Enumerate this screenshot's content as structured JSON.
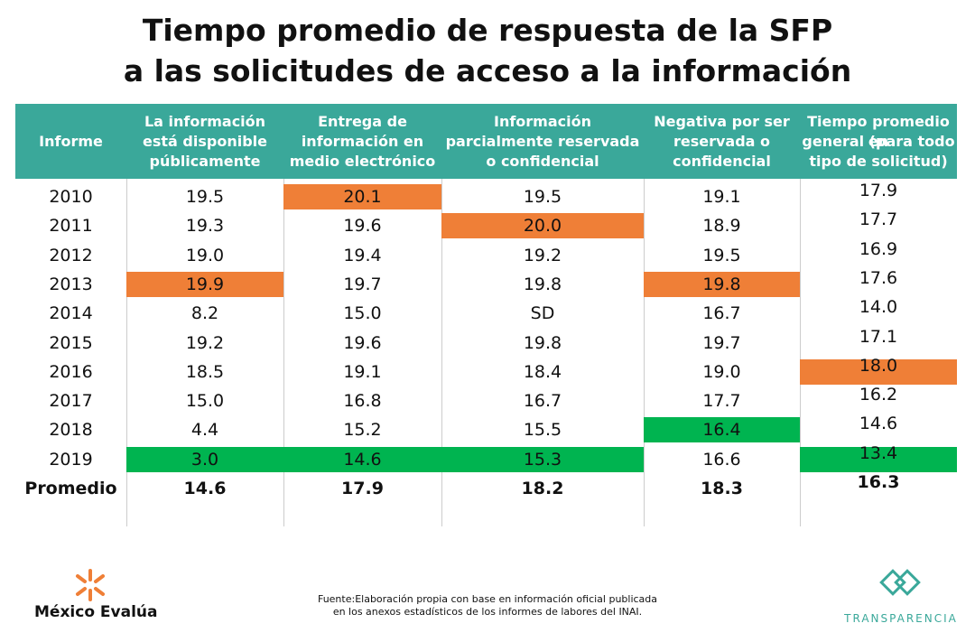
{
  "header": {
    "title": [
      "Tiempo promedio de respuesta de la SFP",
      "a las solicitudes de acceso a la información"
    ]
  },
  "table": {
    "columns": [
      [
        "Informe"
      ],
      [
        "La información",
        "está disponible",
        "públicamente"
      ],
      [
        "Entrega de",
        "información en",
        "medio electrónico"
      ],
      [
        "Información",
        "parcialmente reservada",
        "o confidencial"
      ],
      [
        "Negativa por ser",
        "reservada o",
        "confidencial"
      ],
      [
        "Tiempo promedio en",
        "general (para todo",
        "tipo de solicitud)"
      ]
    ],
    "rows": [
      [
        "2010",
        "19.5",
        "20.1",
        "19.5",
        "19.1",
        "17.9"
      ],
      [
        "2011",
        "19.3",
        "19.6",
        "20.0",
        "18.9",
        "17.7"
      ],
      [
        "2012",
        "19.0",
        "19.4",
        "19.2",
        "19.5",
        "16.9"
      ],
      [
        "2013",
        "19.9",
        "19.7",
        "19.8",
        "19.8",
        "17.6"
      ],
      [
        "2014",
        "8.2",
        "15.0",
        "SD",
        "16.7",
        "14.0"
      ],
      [
        "2015",
        "19.2",
        "19.6",
        "19.8",
        "19.7",
        "17.1"
      ],
      [
        "2016",
        "18.5",
        "19.1",
        "18.4",
        "19.0",
        "18.0"
      ],
      [
        "2017",
        "15.0",
        "16.8",
        "16.7",
        "17.7",
        "16.2"
      ],
      [
        "2018",
        "4.4",
        "15.2",
        "15.5",
        "16.4",
        "14.6"
      ],
      [
        "2019",
        "3.0",
        "14.6",
        "15.3",
        "16.6",
        "13.4"
      ],
      [
        "Promedio",
        "14.6",
        "17.9",
        "18.2",
        "18.3",
        "16.3"
      ]
    ],
    "highlights": [
      {
        "row": 0,
        "col": 2,
        "color": "#ef7f37"
      },
      {
        "row": 1,
        "col": 3,
        "color": "#ef7f37"
      },
      {
        "row": 3,
        "col": 1,
        "color": "#ef7f37"
      },
      {
        "row": 3,
        "col": 4,
        "color": "#ef7f37"
      },
      {
        "row": 6,
        "col": 5,
        "color": "#ef7f37"
      },
      {
        "row": 8,
        "col": 4,
        "color": "#00b450"
      },
      {
        "row": 9,
        "col": 1,
        "color": "#00b450"
      },
      {
        "row": 9,
        "col": 2,
        "color": "#00b450"
      },
      {
        "row": 9,
        "col": 3,
        "color": "#00b450"
      },
      {
        "row": 9,
        "col": 5,
        "color": "#00b450"
      }
    ]
  },
  "footer": {
    "source": [
      "Fuente:Elaboración propia con base en información oficial publicada",
      "en los anexos estadísticos de los informes de labores del INAI."
    ],
    "left_logo": "México Evalúa",
    "right_logo": "TRANSPARENCIA"
  }
}
